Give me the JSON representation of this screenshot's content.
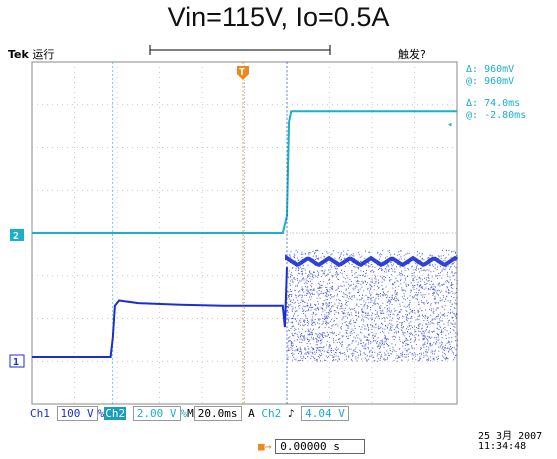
{
  "title": "Vin=115V, Io=0.5A",
  "status": {
    "brand": "Tek",
    "run_state": "运行",
    "trigger_state": "触发?"
  },
  "cursor": {
    "delta_v_label": "Δ:",
    "delta_v": "960mV",
    "at_v_label": "@:",
    "at_v": "960mV",
    "delta_t_label": "Δ:",
    "delta_t": "74.0ms",
    "at_t_label": "@:",
    "at_t": "-2.80ms"
  },
  "settings": {
    "ch1_label": "Ch1",
    "ch1_scale": "100 V",
    "ch1_coupling": "%",
    "ch2_label": "Ch2",
    "ch2_scale": "2.00 V",
    "ch2_coupling": "%",
    "timebase_label": "M",
    "timebase": "20.0ms",
    "trigger_mode": "A",
    "trigger_source": "Ch2",
    "trigger_slope": "♪",
    "trigger_level": "4.04 V",
    "trigger_position": "0.00000 s",
    "trigger_position_icon": "trigger-position-arrow-icon"
  },
  "datetime": {
    "date": "25 3月 2007",
    "time": "11:34:48"
  },
  "markers": {
    "ch2_ground": "2",
    "ch1_ground": "1",
    "trigger": "T"
  },
  "colors": {
    "ch1": "#1a2fd0",
    "ch2": "#1ab0c8",
    "grid": "#b8b8b8",
    "trigger_marker": "#e98a1c"
  },
  "chart_data": {
    "type": "line",
    "title": "Vin=115V, Io=0.5A",
    "xlabel": "",
    "ylabel": "",
    "xlim": [
      -120,
      80
    ],
    "grid": true,
    "x_divisions": 10,
    "y_divisions": 8,
    "time_per_division": "20.0ms",
    "series": [
      {
        "name": "Ch1",
        "volts_per_division": "100 V",
        "points": [
          [
            -120,
            0.1
          ],
          [
            -83,
            0.1
          ],
          [
            -82,
            0.55
          ],
          [
            -81,
            1.3
          ],
          [
            -79,
            1.42
          ],
          [
            -70,
            1.36
          ],
          [
            -50,
            1.32
          ],
          [
            -30,
            1.3
          ],
          [
            -2,
            1.3
          ],
          [
            -1,
            0.8
          ],
          [
            0,
            2.2
          ],
          [
            80,
            2.2
          ]
        ],
        "noise_band": {
          "x_start": 0,
          "x_end": 80,
          "low": 0,
          "high": 2.6
        }
      },
      {
        "name": "Ch2",
        "volts_per_division": "2.00 V",
        "points": [
          [
            -120,
            0
          ],
          [
            -2,
            0
          ],
          [
            0,
            0.4
          ],
          [
            1,
            2.6
          ],
          [
            2,
            2.85
          ],
          [
            80,
            2.85
          ]
        ]
      }
    ]
  }
}
